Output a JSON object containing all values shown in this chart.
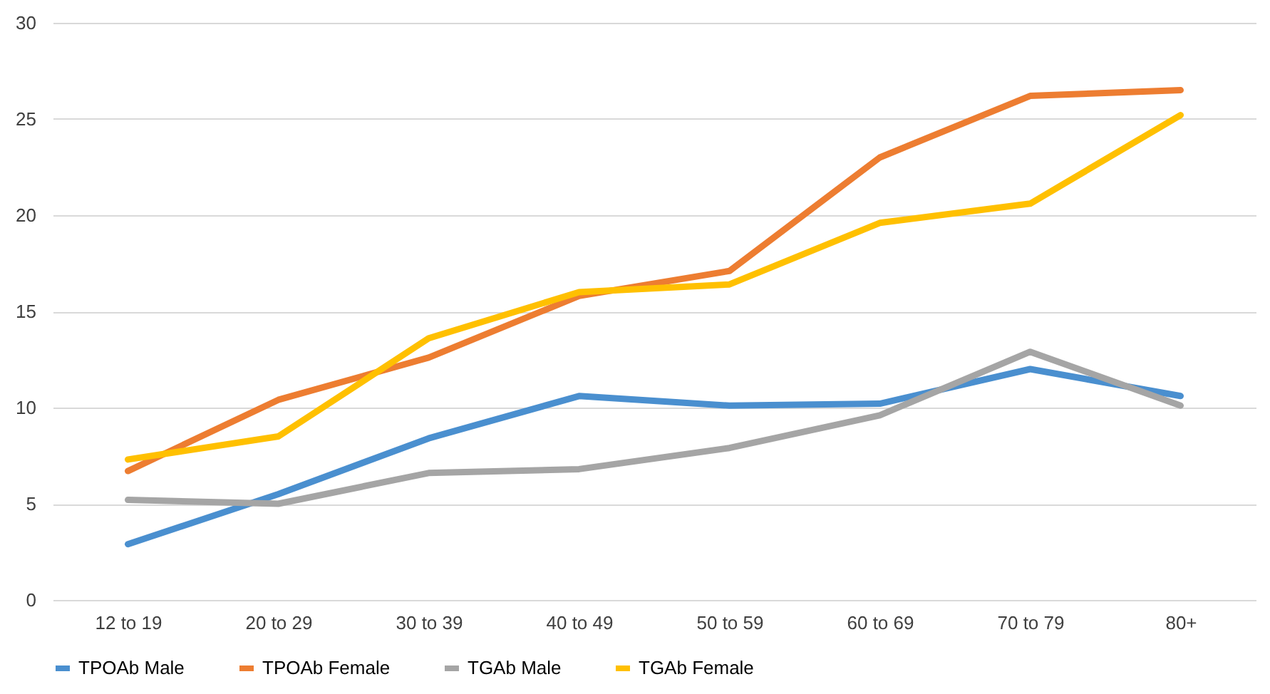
{
  "chart_data": {
    "type": "line",
    "categories": [
      "12 to 19",
      "20 to 29",
      "30 to 39",
      "40 to 49",
      "50 to 59",
      "60 to 69",
      "70 to 79",
      "80+"
    ],
    "series": [
      {
        "name": "TPOAb Male",
        "color": "#4a8fcf",
        "values": [
          2.9,
          5.5,
          8.4,
          10.6,
          10.1,
          10.2,
          12.0,
          10.6
        ]
      },
      {
        "name": "TPOAb Female",
        "color": "#ed7d31",
        "values": [
          6.7,
          10.4,
          12.6,
          15.8,
          17.1,
          23.0,
          26.2,
          26.5
        ]
      },
      {
        "name": "TGAb Male",
        "color": "#a5a5a5",
        "values": [
          5.2,
          5.0,
          6.6,
          6.8,
          7.9,
          9.6,
          12.9,
          10.1
        ]
      },
      {
        "name": "TGAb Female",
        "color": "#ffc000",
        "values": [
          7.3,
          8.5,
          13.6,
          16.0,
          16.4,
          19.6,
          20.6,
          25.2
        ]
      }
    ],
    "ylim": [
      0,
      30
    ],
    "yticks": [
      0,
      5,
      10,
      15,
      20,
      25,
      30
    ],
    "grid": "y",
    "legend": "bottom",
    "marker": "none",
    "line_style": "solid"
  }
}
